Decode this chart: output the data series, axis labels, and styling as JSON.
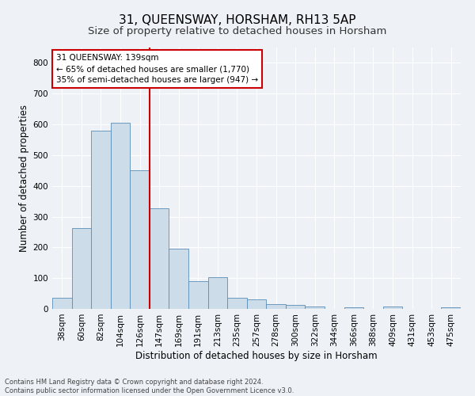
{
  "title": "31, QUEENSWAY, HORSHAM, RH13 5AP",
  "subtitle": "Size of property relative to detached houses in Horsham",
  "xlabel": "Distribution of detached houses by size in Horsham",
  "ylabel": "Number of detached properties",
  "categories": [
    "38sqm",
    "60sqm",
    "82sqm",
    "104sqm",
    "126sqm",
    "147sqm",
    "169sqm",
    "191sqm",
    "213sqm",
    "235sqm",
    "257sqm",
    "278sqm",
    "300sqm",
    "322sqm",
    "344sqm",
    "366sqm",
    "388sqm",
    "409sqm",
    "431sqm",
    "453sqm",
    "475sqm"
  ],
  "values": [
    37,
    262,
    580,
    605,
    450,
    328,
    195,
    90,
    102,
    37,
    30,
    15,
    12,
    8,
    0,
    5,
    0,
    8,
    0,
    0,
    5
  ],
  "bar_color": "#ccdce8",
  "bar_edge_color": "#5a8db5",
  "red_line_index": 4,
  "annotation_line1": "31 QUEENSWAY: 139sqm",
  "annotation_line2": "← 65% of detached houses are smaller (1,770)",
  "annotation_line3": "35% of semi-detached houses are larger (947) →",
  "annotation_box_color": "#ffffff",
  "annotation_box_edge_color": "#cc0000",
  "red_line_color": "#cc0000",
  "footer_line1": "Contains HM Land Registry data © Crown copyright and database right 2024.",
  "footer_line2": "Contains public sector information licensed under the Open Government Licence v3.0.",
  "ylim": [
    0,
    850
  ],
  "yticks": [
    0,
    100,
    200,
    300,
    400,
    500,
    600,
    700,
    800
  ],
  "background_color": "#eef2f7",
  "grid_color": "#ffffff",
  "title_fontsize": 11,
  "subtitle_fontsize": 9.5,
  "axis_label_fontsize": 8.5,
  "tick_fontsize": 7.5,
  "annotation_fontsize": 7.5,
  "footer_fontsize": 6
}
